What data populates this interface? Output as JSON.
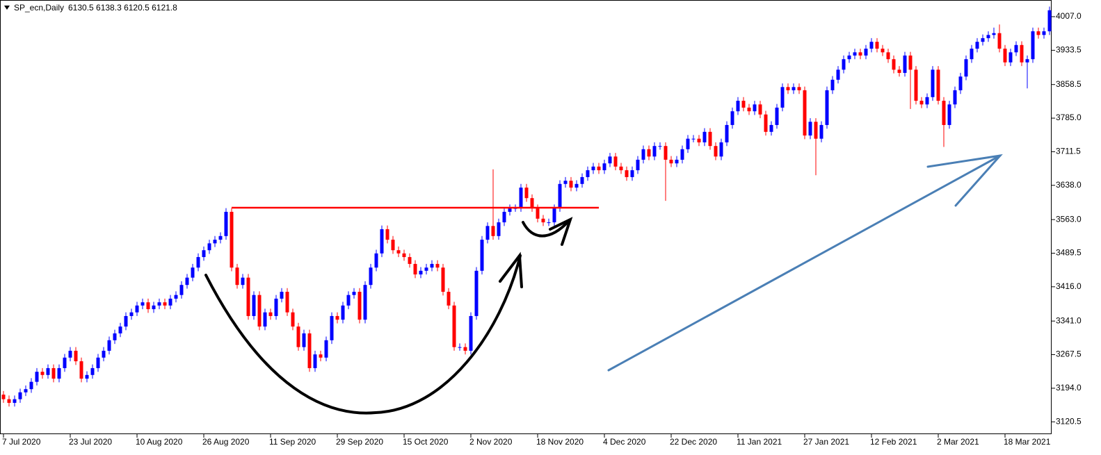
{
  "chart_data": {
    "type": "candlestick",
    "title": "SP_ecn,Daily",
    "subtitle": "6130.5 6138.3 6120.5 6121.8",
    "up_color": "#0000ff",
    "down_color": "#ff0000",
    "open": [
      3180,
      3170,
      3162,
      3170,
      3185,
      3192,
      3208,
      3230,
      3223,
      3238,
      3215,
      3238,
      3261,
      3276,
      3253,
      3215,
      3223,
      3238,
      3261,
      3276,
      3299,
      3314,
      3329,
      3352,
      3360,
      3375,
      3382,
      3367,
      3375,
      3382,
      3375,
      3390,
      3398,
      3420,
      3436,
      3458,
      3481,
      3496,
      3511,
      3519,
      3527,
      3580,
      3458,
      3420,
      3436,
      3352,
      3398,
      3329,
      3360,
      3352,
      3390,
      3405,
      3360,
      3329,
      3284,
      3314,
      3238,
      3268,
      3261,
      3299,
      3352,
      3344,
      3375,
      3398,
      3405,
      3344,
      3420,
      3458,
      3489,
      3542,
      3519,
      3496,
      3489,
      3481,
      3466,
      3443,
      3451,
      3458,
      3466,
      3458,
      3405,
      3375,
      3284,
      3284,
      3276,
      3352,
      3451,
      3519,
      3549,
      3527,
      3557,
      3580,
      3588,
      3588,
      3633,
      3610,
      3588,
      3565,
      3557,
      3557,
      3588,
      3641,
      3648,
      3633,
      3641,
      3656,
      3671,
      3679,
      3671,
      3686,
      3701,
      3679,
      3671,
      3656,
      3671,
      3694,
      3717,
      3701,
      3724,
      3724,
      3694,
      3686,
      3694,
      3717,
      3740,
      3740,
      3732,
      3755,
      3724,
      3701,
      3732,
      3770,
      3800,
      3823,
      3808,
      3800,
      3815,
      3793,
      3755,
      3770,
      3808,
      3853,
      3846,
      3853,
      3846,
      3747,
      3777,
      3740,
      3770,
      3846,
      3869,
      3891,
      3914,
      3922,
      3929,
      3922,
      3937,
      3952,
      3937,
      3929,
      3914,
      3891,
      3884,
      3922,
      3891,
      3823,
      3815,
      3831,
      3891,
      3823,
      3770,
      3815,
      3846,
      3876,
      3914,
      3937,
      3952,
      3960,
      3967,
      3971,
      3937,
      3907,
      3929,
      3945,
      3907,
      3914,
      3975,
      3967,
      3975
    ],
    "high": [
      3188,
      3178,
      3178,
      3193,
      3200,
      3216,
      3238,
      3238,
      3246,
      3246,
      3246,
      3269,
      3284,
      3284,
      3261,
      3231,
      3246,
      3269,
      3284,
      3307,
      3322,
      3337,
      3360,
      3368,
      3383,
      3390,
      3390,
      3383,
      3390,
      3390,
      3398,
      3406,
      3428,
      3444,
      3466,
      3489,
      3504,
      3519,
      3527,
      3535,
      3588,
      3588,
      3466,
      3444,
      3444,
      3406,
      3406,
      3368,
      3368,
      3398,
      3413,
      3413,
      3368,
      3337,
      3322,
      3322,
      3276,
      3276,
      3307,
      3360,
      3360,
      3383,
      3406,
      3413,
      3413,
      3428,
      3466,
      3497,
      3550,
      3550,
      3527,
      3504,
      3497,
      3489,
      3474,
      3459,
      3466,
      3474,
      3474,
      3466,
      3413,
      3383,
      3292,
      3292,
      3360,
      3459,
      3527,
      3557,
      3673,
      3565,
      3588,
      3596,
      3596,
      3641,
      3641,
      3618,
      3596,
      3573,
      3565,
      3596,
      3649,
      3656,
      3656,
      3649,
      3664,
      3679,
      3687,
      3687,
      3694,
      3709,
      3709,
      3687,
      3679,
      3679,
      3702,
      3725,
      3725,
      3732,
      3732,
      3732,
      3702,
      3702,
      3725,
      3748,
      3748,
      3748,
      3763,
      3763,
      3732,
      3740,
      3778,
      3808,
      3831,
      3831,
      3816,
      3823,
      3823,
      3801,
      3778,
      3816,
      3861,
      3861,
      3861,
      3861,
      3854,
      3785,
      3785,
      3778,
      3854,
      3877,
      3899,
      3922,
      3930,
      3937,
      3937,
      3945,
      3960,
      3960,
      3945,
      3937,
      3922,
      3899,
      3930,
      3930,
      3899,
      3831,
      3839,
      3899,
      3899,
      3831,
      3823,
      3854,
      3884,
      3922,
      3945,
      3960,
      3968,
      3975,
      3983,
      3990,
      3945,
      3937,
      3953,
      3953,
      3922,
      3983,
      3983,
      3983,
      4029
    ],
    "low": [
      3162,
      3154,
      3154,
      3162,
      3177,
      3184,
      3200,
      3215,
      3215,
      3207,
      3207,
      3230,
      3253,
      3245,
      3207,
      3207,
      3215,
      3230,
      3253,
      3268,
      3291,
      3306,
      3321,
      3344,
      3352,
      3367,
      3359,
      3359,
      3367,
      3367,
      3367,
      3382,
      3390,
      3412,
      3428,
      3450,
      3473,
      3488,
      3503,
      3511,
      3519,
      3450,
      3412,
      3412,
      3344,
      3344,
      3321,
      3321,
      3344,
      3344,
      3382,
      3352,
      3321,
      3276,
      3276,
      3230,
      3230,
      3253,
      3253,
      3291,
      3336,
      3336,
      3367,
      3390,
      3336,
      3336,
      3412,
      3450,
      3481,
      3511,
      3488,
      3481,
      3473,
      3458,
      3435,
      3435,
      3443,
      3450,
      3450,
      3397,
      3367,
      3276,
      3276,
      3268,
      3268,
      3344,
      3443,
      3511,
      3519,
      3519,
      3549,
      3572,
      3580,
      3580,
      3602,
      3580,
      3557,
      3549,
      3549,
      3549,
      3580,
      3633,
      3625,
      3625,
      3633,
      3648,
      3663,
      3663,
      3663,
      3678,
      3671,
      3663,
      3648,
      3648,
      3663,
      3686,
      3693,
      3693,
      3716,
      3604,
      3678,
      3678,
      3686,
      3709,
      3732,
      3724,
      3724,
      3716,
      3693,
      3693,
      3724,
      3762,
      3792,
      3800,
      3792,
      3792,
      3785,
      3747,
      3747,
      3762,
      3800,
      3838,
      3838,
      3838,
      3739,
      3739,
      3660,
      3732,
      3762,
      3838,
      3861,
      3883,
      3906,
      3914,
      3914,
      3914,
      3929,
      3929,
      3921,
      3906,
      3883,
      3876,
      3876,
      3805,
      3815,
      3807,
      3807,
      3823,
      3815,
      3722,
      3762,
      3807,
      3838,
      3868,
      3906,
      3929,
      3944,
      3952,
      3959,
      3929,
      3899,
      3899,
      3921,
      3899,
      3850,
      3906,
      3959,
      3959,
      3967
    ],
    "close": [
      3170,
      3162,
      3170,
      3185,
      3192,
      3208,
      3230,
      3223,
      3238,
      3215,
      3238,
      3261,
      3276,
      3253,
      3215,
      3223,
      3238,
      3261,
      3276,
      3299,
      3314,
      3329,
      3352,
      3360,
      3375,
      3382,
      3367,
      3375,
      3382,
      3375,
      3390,
      3398,
      3420,
      3436,
      3458,
      3481,
      3496,
      3511,
      3519,
      3527,
      3580,
      3458,
      3420,
      3436,
      3352,
      3398,
      3329,
      3360,
      3352,
      3390,
      3405,
      3360,
      3329,
      3284,
      3314,
      3238,
      3268,
      3261,
      3299,
      3352,
      3344,
      3375,
      3398,
      3405,
      3344,
      3420,
      3458,
      3489,
      3542,
      3519,
      3496,
      3489,
      3481,
      3466,
      3443,
      3451,
      3458,
      3466,
      3458,
      3405,
      3375,
      3284,
      3284,
      3276,
      3352,
      3451,
      3519,
      3549,
      3527,
      3557,
      3580,
      3588,
      3588,
      3633,
      3610,
      3588,
      3565,
      3557,
      3557,
      3588,
      3641,
      3648,
      3633,
      3641,
      3656,
      3671,
      3679,
      3671,
      3686,
      3701,
      3679,
      3671,
      3656,
      3671,
      3694,
      3717,
      3701,
      3724,
      3724,
      3694,
      3686,
      3694,
      3717,
      3740,
      3740,
      3732,
      3755,
      3724,
      3701,
      3732,
      3770,
      3800,
      3823,
      3808,
      3800,
      3815,
      3793,
      3755,
      3770,
      3808,
      3853,
      3846,
      3853,
      3846,
      3747,
      3777,
      3740,
      3770,
      3846,
      3869,
      3891,
      3914,
      3922,
      3929,
      3922,
      3937,
      3952,
      3937,
      3929,
      3914,
      3891,
      3884,
      3922,
      3891,
      3823,
      3815,
      3831,
      3891,
      3823,
      3770,
      3815,
      3846,
      3876,
      3914,
      3937,
      3952,
      3960,
      3967,
      3971,
      3937,
      3907,
      3929,
      3945,
      3907,
      3914,
      3975,
      3967,
      3975,
      4021
    ],
    "xticks": [
      {
        "value": 0,
        "label": "7 Jul 2020"
      },
      {
        "value": 12,
        "label": "23 Jul 2020"
      },
      {
        "value": 24,
        "label": "10 Aug 2020"
      },
      {
        "value": 36,
        "label": "26 Aug 2020"
      },
      {
        "value": 48,
        "label": "11 Sep 2020"
      },
      {
        "value": 60,
        "label": "29 Sep 2020"
      },
      {
        "value": 72,
        "label": "15 Oct 2020"
      },
      {
        "value": 84,
        "label": "2 Nov 2020"
      },
      {
        "value": 96,
        "label": "18 Nov 2020"
      },
      {
        "value": 108,
        "label": "4 Dec 2020"
      },
      {
        "value": 120,
        "label": "22 Dec 2020"
      },
      {
        "value": 132,
        "label": "11 Jan 2021"
      },
      {
        "value": 144,
        "label": "27 Jan 2021"
      },
      {
        "value": 156,
        "label": "12 Feb 2021"
      },
      {
        "value": 168,
        "label": "2 Mar 2021"
      },
      {
        "value": 180,
        "label": "18 Mar 2021"
      }
    ],
    "ylim": [
      3093.5,
      4043.5
    ],
    "yticks": [
      {
        "value": 4007,
        "label": "4007.0"
      },
      3933.5,
      3858.5,
      {
        "value": 3785,
        "label": "3785.0"
      },
      3711.5,
      {
        "value": 3638,
        "label": "3638.0"
      },
      {
        "value": 3563,
        "label": "3563.0"
      },
      3489.5,
      {
        "value": 3416,
        "label": "3416.0"
      },
      {
        "value": 3341,
        "label": "3341.0"
      },
      3267.5,
      {
        "value": 3194,
        "label": "3194.0"
      },
      3120.5
    ],
    "level": {
      "value": 3589,
      "color": "#ff0000",
      "from": 41,
      "to": 107
    },
    "grid": false
  }
}
